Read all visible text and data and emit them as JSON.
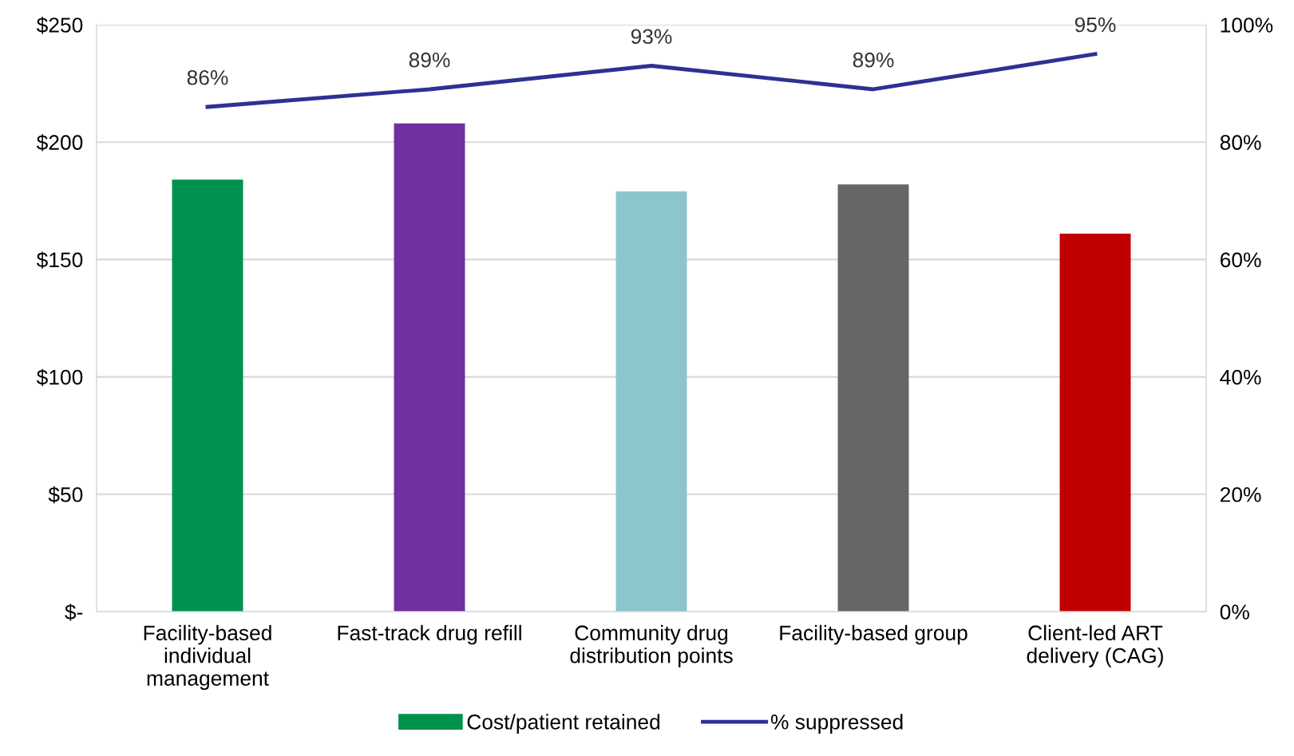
{
  "chart_data": {
    "type": "bar",
    "categories": [
      "Facility-based\nindividual\nmanagement",
      "Fast-track drug refill",
      "Community drug\ndistribution points",
      "Facility-based group",
      "Client-led ART\ndelivery (CAG)"
    ],
    "series": [
      {
        "name": "Cost/patient retained",
        "color": "#00914f",
        "colors": [
          "#00914f",
          "#7030a0",
          "#8cc5cc",
          "#666666",
          "#c00000"
        ],
        "values": [
          184,
          208,
          179,
          182,
          161
        ]
      },
      {
        "name": "% suppressed",
        "type": "line",
        "axis": "y2",
        "color": "#2e3192",
        "values": [
          86,
          89,
          93,
          89,
          95
        ],
        "value_labels": [
          "86%",
          "89%",
          "93%",
          "89%",
          "95%"
        ]
      }
    ],
    "ylim": [
      0,
      250
    ],
    "yticks": [
      {
        "value": 0,
        "label": "$-"
      },
      {
        "value": 50,
        "label": "$50"
      },
      {
        "value": 100,
        "label": "$100"
      },
      {
        "value": 150,
        "label": "$150"
      },
      {
        "value": 200,
        "label": "$200"
      },
      {
        "value": 250,
        "label": "$250"
      }
    ],
    "y2lim": [
      0,
      100
    ],
    "y2ticks": [
      {
        "value": 0,
        "label": "0%"
      },
      {
        "value": 20,
        "label": "20%"
      },
      {
        "value": 40,
        "label": "40%"
      },
      {
        "value": 60,
        "label": "60%"
      },
      {
        "value": 80,
        "label": "80%"
      },
      {
        "value": 100,
        "label": "100%"
      }
    ],
    "grid": "y",
    "legend": "bottom",
    "marker": "none",
    "line_style": "solid"
  }
}
